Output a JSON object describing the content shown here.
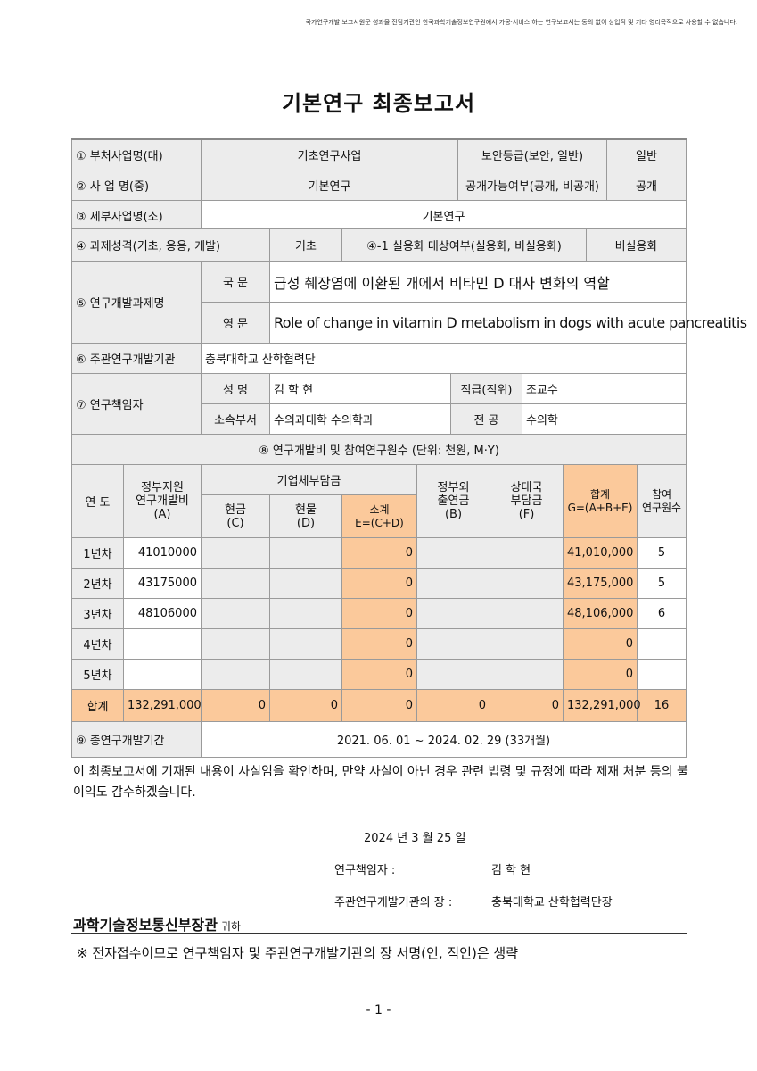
{
  "notice": "국가연구개발 보고서원문 성과물 전담기관인 한국과학기술정보연구원에서 가공·서비스 하는 연구보고서는 동의 없이 상업적 및 기타 영리목적으로 사용할 수 없습니다.",
  "title": "기본연구 최종보고서",
  "info": {
    "r1": {
      "label": "① 부처사업명(대)",
      "value": "기초연구사업",
      "label2": "보안등급(보안, 일반)",
      "value2": "일반"
    },
    "r2": {
      "label": "② 사  업  명(중)",
      "value": "기본연구",
      "label2": "공개가능여부(공개, 비공개)",
      "value2": "공개"
    },
    "r3": {
      "label": "③ 세부사업명(소)",
      "value": "기본연구"
    },
    "r4": {
      "label": "④ 과제성격(기초, 응용, 개발)",
      "value": "기초",
      "label2": "④-1 실용화 대상여부(실용화, 비실용화)",
      "value2": "비실용화"
    },
    "r5": {
      "label": "⑤ 연구개발과제명",
      "kor_label": "국 문",
      "kor": "급성 췌장염에 이환된 개에서 비타민 D 대사 변화의 역할",
      "eng_label": "영 문",
      "eng": "Role of change in vitamin D metabolism in dogs with acute pancreatitis"
    },
    "r6": {
      "label": "⑥ 주관연구개발기관",
      "value": "충북대학교 산학협력단"
    },
    "r7": {
      "label": "⑦ 연구책임자",
      "name_label": "성 명",
      "name": "김 학 현",
      "rank_label": "직급(직위)",
      "rank": "조교수",
      "dept_label": "소속부서",
      "dept": "수의과대학 수의학과",
      "major_label": "전 공",
      "major": "수의학"
    }
  },
  "budget": {
    "heading": "⑧ 연구개발비 및 참여연구원수 (단위: 천원, M·Y)",
    "headers": {
      "year": "연 도",
      "gov": "정부지원\n연구개발비\n(A)",
      "corp": "기업체부담금",
      "cash": "현금\n(C)",
      "kind": "현물\n(D)",
      "sub": "소계\nE=(C+D)",
      "nongov": "정부외\n출연금\n(B)",
      "partner": "상대국\n부담금\n(F)",
      "total": "합계\nG=(A+B+E)",
      "staff": "참여\n연구원수"
    },
    "rows": [
      {
        "year": "1년차",
        "gov": "41010000",
        "cash": "",
        "kind": "",
        "sub": "0",
        "nongov": "",
        "partner": "",
        "total": "41,010,000",
        "staff": "5"
      },
      {
        "year": "2년차",
        "gov": "43175000",
        "cash": "",
        "kind": "",
        "sub": "0",
        "nongov": "",
        "partner": "",
        "total": "43,175,000",
        "staff": "5"
      },
      {
        "year": "3년차",
        "gov": "48106000",
        "cash": "",
        "kind": "",
        "sub": "0",
        "nongov": "",
        "partner": "",
        "total": "48,106,000",
        "staff": "6"
      },
      {
        "year": "4년차",
        "gov": "",
        "cash": "",
        "kind": "",
        "sub": "0",
        "nongov": "",
        "partner": "",
        "total": "0",
        "staff": ""
      },
      {
        "year": "5년차",
        "gov": "",
        "cash": "",
        "kind": "",
        "sub": "0",
        "nongov": "",
        "partner": "",
        "total": "0",
        "staff": ""
      }
    ],
    "sum": {
      "year": "합계",
      "gov": "132,291,000",
      "cash": "0",
      "kind": "0",
      "sub": "0",
      "nongov": "0",
      "partner": "0",
      "total": "132,291,000",
      "staff": "16"
    }
  },
  "period": {
    "label": "⑨ 총연구개발기간",
    "value": "2021. 06. 01 ~ 2024. 02. 29 (33개월)"
  },
  "declaration": "이 최종보고서에 기재된 내용이 사실임을 확인하며, 만약 사실이 아닌 경우 관련 법령 및 규정에 따라 제재 처분 등의 불이익도 감수하겠습니다.",
  "signature": {
    "date": "2024 년   3  월  25   일",
    "pi_label": "연구책임자 :",
    "pi": "김 학 현",
    "head_label": "주관연구개발기관의 장 :",
    "head": "충북대학교 산학협력단장"
  },
  "addressee": "과학기술정보통신부장관",
  "addressee_suffix": "귀하",
  "note": "※ 전자접수이므로 연구책임자 및 주관연구개발기관의 장 서명(인, 직인)은 생략",
  "page_number": "- 1 -"
}
